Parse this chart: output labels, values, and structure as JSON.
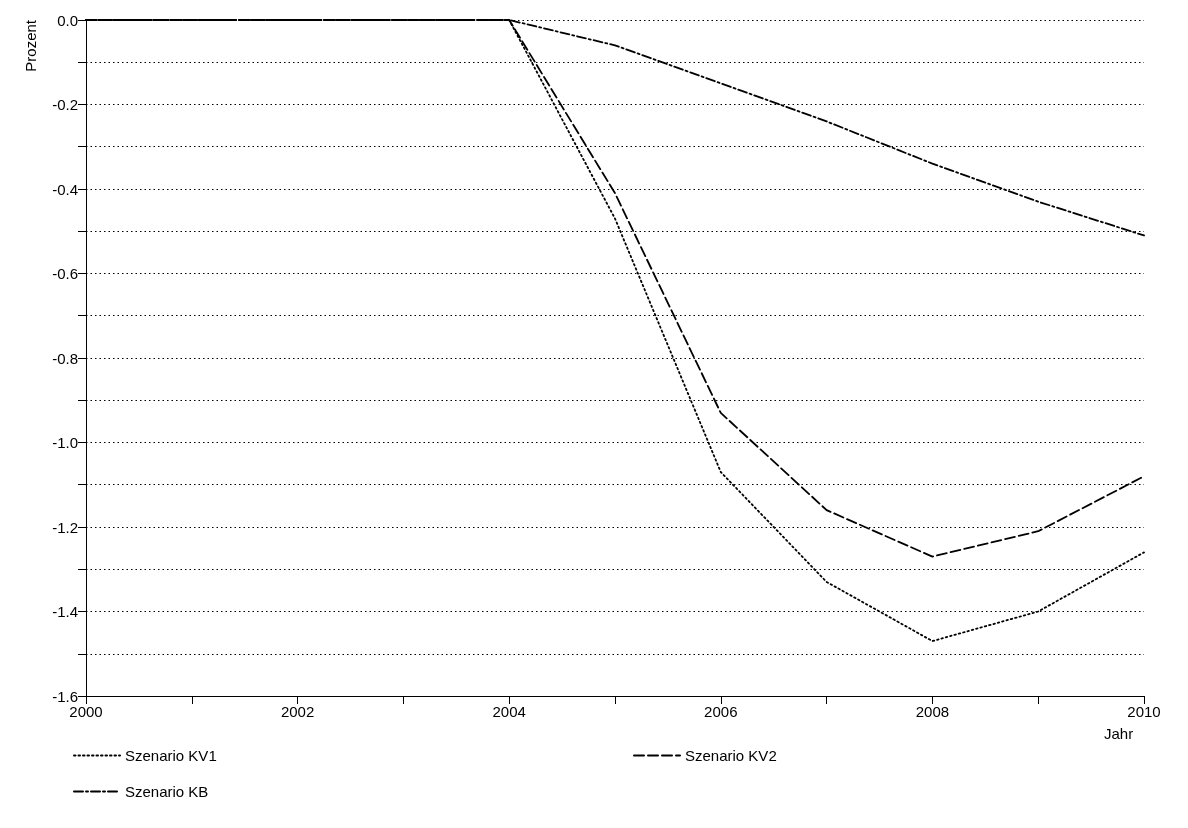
{
  "chart_data": {
    "type": "line",
    "xlabel": "Jahr",
    "ylabel": "Prozent",
    "x": [
      2000,
      2001,
      2002,
      2003,
      2004,
      2005,
      2006,
      2007,
      2008,
      2009,
      2010
    ],
    "series": [
      {
        "name": "Szenario KV1",
        "color": "#000000",
        "line_style": "dotted",
        "values": [
          0,
          0,
          0,
          0,
          0,
          -0.47,
          -1.07,
          -1.33,
          -1.47,
          -1.4,
          -1.26
        ]
      },
      {
        "name": "Szenario KV2",
        "color": "#000000",
        "line_style": "dashed",
        "values": [
          0,
          0,
          0,
          0,
          0,
          -0.41,
          -0.93,
          -1.16,
          -1.27,
          -1.21,
          -1.08
        ]
      },
      {
        "name": "Szenario KB",
        "color": "#000000",
        "line_style": "dashdot",
        "values": [
          0,
          0,
          0,
          0,
          0,
          -0.06,
          -0.15,
          -0.24,
          -0.34,
          -0.43,
          -0.51
        ]
      }
    ],
    "xlim": [
      2000,
      2010
    ],
    "xticks": [
      2000,
      {
        "value": 2001,
        "label": null
      },
      2002,
      {
        "value": 2003,
        "label": null
      },
      2004,
      {
        "value": 2005,
        "label": null
      },
      2006,
      {
        "value": 2007,
        "label": null
      },
      2008,
      {
        "value": 2009,
        "label": null
      },
      2010
    ],
    "ylim": [
      -1.6,
      0
    ],
    "yticks": [
      {
        "value": -1.6,
        "label": "-1.6"
      },
      {
        "value": -1.5,
        "label": null
      },
      {
        "value": -1.4,
        "label": "-1.4"
      },
      {
        "value": -1.3,
        "label": null
      },
      {
        "value": -1.2,
        "label": "-1.2"
      },
      {
        "value": -1.1,
        "label": null
      },
      {
        "value": -1.0,
        "label": "-1.0"
      },
      {
        "value": -0.9,
        "label": null
      },
      {
        "value": -0.8,
        "label": "-0.8"
      },
      {
        "value": -0.7,
        "label": null
      },
      {
        "value": -0.6,
        "label": "-0.6"
      },
      {
        "value": -0.5,
        "label": null
      },
      {
        "value": -0.4,
        "label": "-0.4"
      },
      {
        "value": -0.3,
        "label": null
      },
      {
        "value": -0.2,
        "label": "-0.2"
      },
      {
        "value": -0.1,
        "label": null
      },
      {
        "value": 0,
        "label": "0.0"
      }
    ],
    "grid": "y",
    "legend": "bottom",
    "marker": "none"
  }
}
